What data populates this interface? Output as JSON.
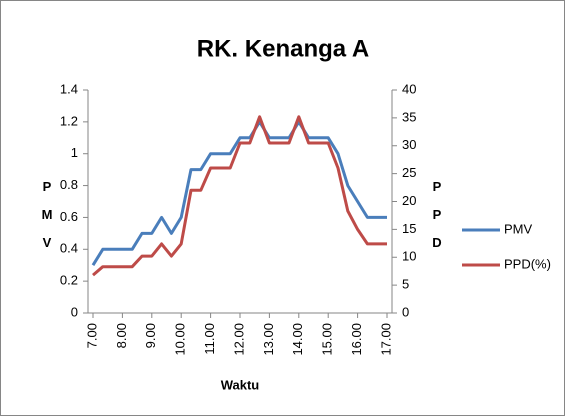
{
  "chart_data": {
    "type": "line",
    "title": "RK. Kenanga A",
    "x_label": "Waktu",
    "y_label": "PMV",
    "y2_label": "PPD",
    "categories": [
      "7.00",
      null,
      null,
      "8.00",
      null,
      null,
      "9.00",
      null,
      null,
      "10.00",
      null,
      null,
      "11.00",
      null,
      null,
      "12.00",
      null,
      null,
      "13.00",
      null,
      null,
      "14.00",
      null,
      null,
      "15.00",
      null,
      null,
      "16.00",
      null,
      null,
      "17.00"
    ],
    "series": [
      {
        "name": "PMV",
        "color": "#4a7ebb",
        "values": [
          0.3,
          0.4,
          0.4,
          0.4,
          0.4,
          0.5,
          0.5,
          0.6,
          0.5,
          0.6,
          0.9,
          0.9,
          1.0,
          1.0,
          1.0,
          1.1,
          1.1,
          1.2,
          1.1,
          1.1,
          1.1,
          1.2,
          1.1,
          1.1,
          1.1,
          1.0,
          0.8,
          0.7,
          0.6,
          0.6,
          0.6
        ]
      },
      {
        "name": "PPD(%)",
        "color": "#be4b48",
        "axis": "y2",
        "values": [
          6.8,
          8.3,
          8.3,
          8.3,
          8.3,
          10.2,
          10.2,
          12.4,
          10.2,
          12.4,
          22,
          22,
          26,
          26,
          26,
          30.5,
          30.5,
          35.2,
          30.5,
          30.5,
          30.5,
          35.2,
          30.5,
          30.5,
          30.5,
          26,
          18.3,
          15,
          12.4,
          12.4,
          12.4
        ]
      }
    ],
    "ylim": [
      0,
      1.4
    ],
    "yticks": [
      0,
      0.2,
      0.4,
      0.6,
      0.8,
      1,
      1.2,
      1.4
    ],
    "y2lim": [
      0,
      40
    ],
    "y2ticks": [
      0,
      5,
      10,
      15,
      20,
      25,
      30,
      35,
      40
    ],
    "legend": "right"
  }
}
